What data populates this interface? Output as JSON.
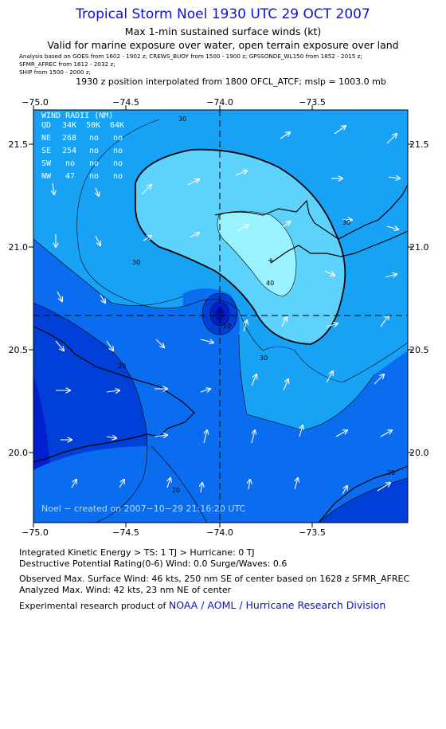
{
  "header": {
    "title": "Tropical Storm Noel 1930 UTC 29 OCT 2007",
    "subtitle": "Max 1-min sustained surface winds (kt)",
    "valid": "Valid for marine exposure over water, open terrain exposure over land",
    "analysis_lines": [
      "Analysis based on  GOES from 1602 - 1902 z;  CREWS_BUOY from 1500 - 1900 z;  GPSSONDE_WL150 from 1852 - 2015 z;",
      "SFMR_AFREC from 1612 - 2032 z;",
      "SHIP from 1500 - 2000 z;"
    ],
    "position_note": "1930 z position interpolated from 1800 OFCL_ATCF; mslp = 1003.0 mb"
  },
  "map": {
    "x_ticks": [
      "−75.0",
      "−74.5",
      "−74.0",
      "−73.5"
    ],
    "y_ticks": [
      "21.5",
      "21.0",
      "20.5",
      "20.0"
    ],
    "contour_labels": [
      "30",
      "30",
      "40",
      "10",
      "30",
      "30",
      "20",
      "20",
      "20"
    ],
    "wind_radii": {
      "title": "WIND RADII (NM)",
      "header": [
        "QD",
        "34K",
        "50K",
        "64K"
      ],
      "rows": [
        [
          "NE",
          "268",
          "no",
          "no"
        ],
        [
          "SE",
          "254",
          "no",
          "no"
        ],
        [
          "SW",
          "no",
          "no",
          "no"
        ],
        [
          "NW",
          "47",
          "no",
          "no"
        ]
      ]
    },
    "credit": "Noel − created on 2007−10−29 21:16:20 UTC",
    "colors": {
      "level_10": "#0040d8",
      "level_20": "#0a6cee",
      "level_30": "#18a2f6",
      "level_40": "#5cd2fc",
      "level_45": "#98f2ff",
      "eye": "#0010b0",
      "background_low": "#0020d0"
    }
  },
  "footer": {
    "ike": "Integrated Kinetic Energy > TS: 1 TJ   > Hurricane: 0 TJ",
    "dpr": "Destructive Potential Rating(0-6)   Wind: 0.0 Surge/Waves: 0.6",
    "obs": "Observed Max. Surface Wind: 46 kts, 250 nm SE of center based on 1628 z SFMR_AFREC",
    "analyzed": "Analyzed Max. Wind: 42 kts, 23 nm NE of center",
    "research_prefix": "Experimental research product of ",
    "research_link": "NOAA / AOML / Hurricane Research Division"
  }
}
